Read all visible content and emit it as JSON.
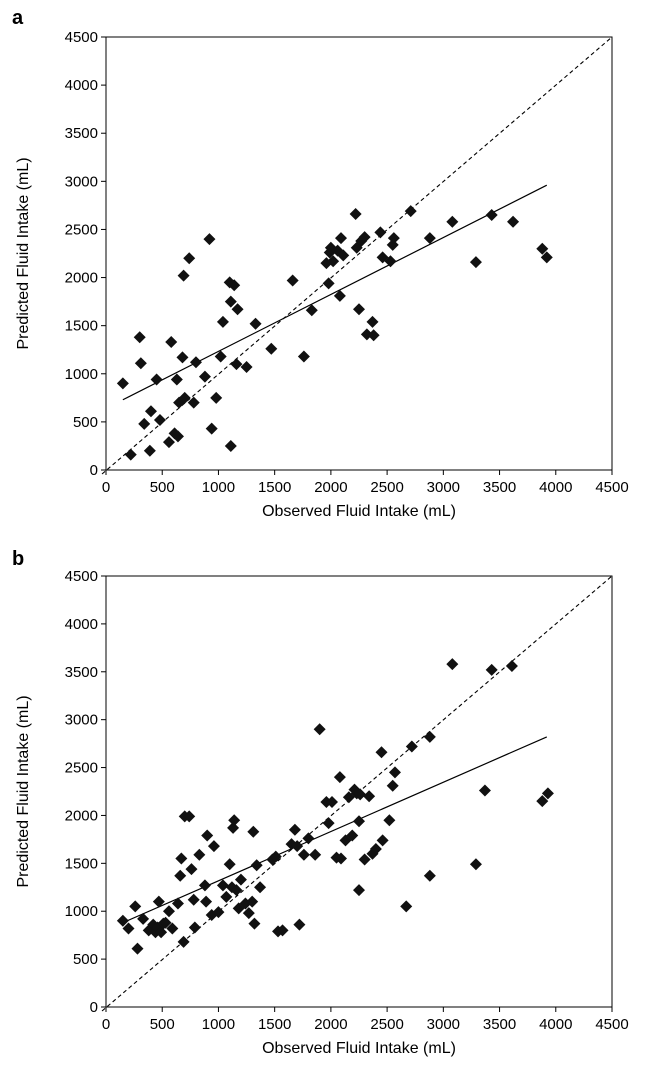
{
  "chart_data": [
    {
      "panel_label": "a",
      "type": "scatter",
      "xlabel": "Observed Fluid Intake (mL)",
      "ylabel": "Predicted Fluid Intake (mL)",
      "xlim": [
        0,
        4500
      ],
      "ylim": [
        0,
        4500
      ],
      "x_ticks": [
        "0",
        "500",
        "1000",
        "1500",
        "2000",
        "2500",
        "3000",
        "3500",
        "4000",
        "4500"
      ],
      "y_ticks": [
        "0",
        "500",
        "1000",
        "1500",
        "2000",
        "2500",
        "3000",
        "3500",
        "4000",
        "4500"
      ],
      "grid": false,
      "identity_line": true,
      "regression_line": [
        [
          150,
          730
        ],
        [
          3920,
          2960
        ]
      ],
      "points": [
        [
          150,
          900
        ],
        [
          220,
          160
        ],
        [
          300,
          1380
        ],
        [
          310,
          1110
        ],
        [
          340,
          480
        ],
        [
          390,
          200
        ],
        [
          400,
          610
        ],
        [
          450,
          940
        ],
        [
          480,
          520
        ],
        [
          560,
          290
        ],
        [
          580,
          1330
        ],
        [
          610,
          380
        ],
        [
          630,
          940
        ],
        [
          640,
          350
        ],
        [
          650,
          700
        ],
        [
          680,
          1170
        ],
        [
          690,
          2020
        ],
        [
          700,
          750
        ],
        [
          740,
          2200
        ],
        [
          780,
          700
        ],
        [
          800,
          1120
        ],
        [
          880,
          970
        ],
        [
          920,
          2400
        ],
        [
          940,
          430
        ],
        [
          980,
          750
        ],
        [
          1020,
          1180
        ],
        [
          1040,
          1540
        ],
        [
          1100,
          1950
        ],
        [
          1110,
          250
        ],
        [
          1110,
          1750
        ],
        [
          1140,
          1920
        ],
        [
          1160,
          1100
        ],
        [
          1170,
          1670
        ],
        [
          1250,
          1070
        ],
        [
          1330,
          1520
        ],
        [
          1470,
          1260
        ],
        [
          1660,
          1970
        ],
        [
          1760,
          1180
        ],
        [
          1830,
          1660
        ],
        [
          1960,
          2150
        ],
        [
          1980,
          1940
        ],
        [
          1990,
          2260
        ],
        [
          2000,
          2310
        ],
        [
          2020,
          2170
        ],
        [
          2060,
          2280
        ],
        [
          2080,
          1810
        ],
        [
          2090,
          2410
        ],
        [
          2110,
          2230
        ],
        [
          2220,
          2660
        ],
        [
          2230,
          2310
        ],
        [
          2250,
          1670
        ],
        [
          2270,
          2380
        ],
        [
          2300,
          2420
        ],
        [
          2320,
          1410
        ],
        [
          2370,
          1540
        ],
        [
          2380,
          1400
        ],
        [
          2440,
          2470
        ],
        [
          2460,
          2210
        ],
        [
          2530,
          2170
        ],
        [
          2550,
          2340
        ],
        [
          2560,
          2410
        ],
        [
          2710,
          2690
        ],
        [
          2880,
          2410
        ],
        [
          3080,
          2580
        ],
        [
          3290,
          2160
        ],
        [
          3430,
          2650
        ],
        [
          3620,
          2580
        ],
        [
          3880,
          2300
        ],
        [
          3920,
          2210
        ]
      ]
    },
    {
      "panel_label": "b",
      "type": "scatter",
      "xlabel": "Observed Fluid Intake (mL)",
      "ylabel": "Predicted Fluid Intake (mL)",
      "xlim": [
        0,
        4500
      ],
      "ylim": [
        0,
        4500
      ],
      "x_ticks": [
        "0",
        "500",
        "1000",
        "1500",
        "2000",
        "2500",
        "3000",
        "3500",
        "4000",
        "4500"
      ],
      "y_ticks": [
        "0",
        "500",
        "1000",
        "1500",
        "2000",
        "2500",
        "3000",
        "3500",
        "4000",
        "4500"
      ],
      "grid": false,
      "identity_line": true,
      "regression_line": [
        [
          150,
          880
        ],
        [
          3920,
          2820
        ]
      ],
      "points": [
        [
          150,
          900
        ],
        [
          200,
          820
        ],
        [
          260,
          1050
        ],
        [
          280,
          610
        ],
        [
          330,
          920
        ],
        [
          380,
          800
        ],
        [
          420,
          860
        ],
        [
          440,
          780
        ],
        [
          460,
          830
        ],
        [
          470,
          1100
        ],
        [
          490,
          780
        ],
        [
          510,
          870
        ],
        [
          530,
          880
        ],
        [
          560,
          1000
        ],
        [
          590,
          820
        ],
        [
          640,
          1080
        ],
        [
          660,
          1370
        ],
        [
          670,
          1550
        ],
        [
          690,
          680
        ],
        [
          700,
          1990
        ],
        [
          740,
          1990
        ],
        [
          760,
          1440
        ],
        [
          780,
          1120
        ],
        [
          790,
          830
        ],
        [
          830,
          1590
        ],
        [
          880,
          1270
        ],
        [
          890,
          1100
        ],
        [
          900,
          1790
        ],
        [
          940,
          960
        ],
        [
          960,
          1680
        ],
        [
          1000,
          990
        ],
        [
          1040,
          1270
        ],
        [
          1070,
          1150
        ],
        [
          1100,
          1490
        ],
        [
          1120,
          1250
        ],
        [
          1130,
          1870
        ],
        [
          1140,
          1950
        ],
        [
          1160,
          1220
        ],
        [
          1180,
          1030
        ],
        [
          1200,
          1330
        ],
        [
          1240,
          1080
        ],
        [
          1270,
          980
        ],
        [
          1300,
          1100
        ],
        [
          1310,
          1830
        ],
        [
          1320,
          870
        ],
        [
          1340,
          1480
        ],
        [
          1370,
          1250
        ],
        [
          1480,
          1540
        ],
        [
          1510,
          1570
        ],
        [
          1530,
          790
        ],
        [
          1570,
          800
        ],
        [
          1650,
          1700
        ],
        [
          1680,
          1850
        ],
        [
          1700,
          1680
        ],
        [
          1720,
          860
        ],
        [
          1760,
          1590
        ],
        [
          1800,
          1760
        ],
        [
          1860,
          1590
        ],
        [
          1900,
          2900
        ],
        [
          1960,
          2140
        ],
        [
          1980,
          1920
        ],
        [
          2010,
          2140
        ],
        [
          2050,
          1560
        ],
        [
          2080,
          2400
        ],
        [
          2090,
          1550
        ],
        [
          2130,
          1740
        ],
        [
          2160,
          2190
        ],
        [
          2190,
          1790
        ],
        [
          2210,
          2270
        ],
        [
          2230,
          2230
        ],
        [
          2250,
          1940
        ],
        [
          2250,
          1220
        ],
        [
          2260,
          2220
        ],
        [
          2300,
          1540
        ],
        [
          2340,
          2200
        ],
        [
          2370,
          1600
        ],
        [
          2400,
          1650
        ],
        [
          2450,
          2660
        ],
        [
          2460,
          1740
        ],
        [
          2520,
          1950
        ],
        [
          2550,
          2310
        ],
        [
          2570,
          2450
        ],
        [
          2670,
          1050
        ],
        [
          2720,
          2720
        ],
        [
          2880,
          2820
        ],
        [
          2880,
          1370
        ],
        [
          3080,
          3580
        ],
        [
          3290,
          1490
        ],
        [
          3370,
          2260
        ],
        [
          3430,
          3520
        ],
        [
          3610,
          3560
        ],
        [
          3880,
          2150
        ],
        [
          3930,
          2230
        ]
      ]
    }
  ]
}
